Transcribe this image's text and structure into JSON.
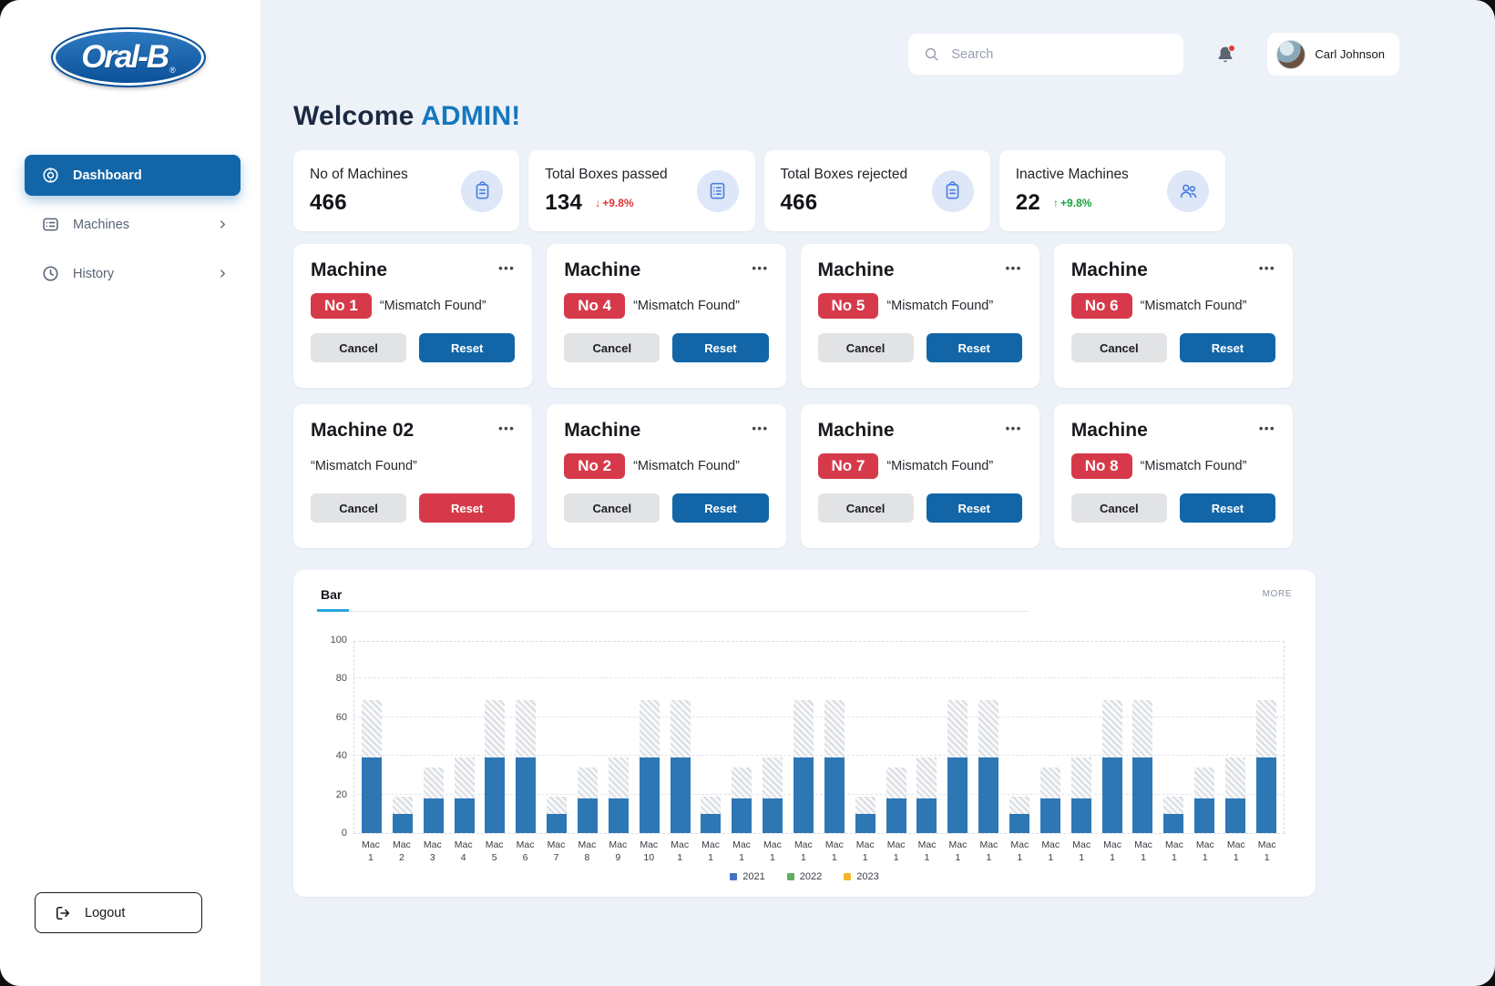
{
  "app": {
    "logo_text": "Oral-B",
    "logo_mark": "®"
  },
  "sidebar": {
    "items": [
      {
        "label": "Dashboard",
        "icon": "dashboard-icon",
        "active": true,
        "chevron": false
      },
      {
        "label": "Machines",
        "icon": "machines-icon",
        "active": false,
        "chevron": true
      },
      {
        "label": "History",
        "icon": "history-icon",
        "active": false,
        "chevron": true
      }
    ],
    "logout_label": "Logout"
  },
  "topbar": {
    "search_placeholder": "Search",
    "user_name": "Carl Johnson"
  },
  "welcome": {
    "prefix": "Welcome",
    "highlight": "ADMIN!"
  },
  "stats": [
    {
      "title": "No of Machines",
      "value": "466",
      "icon": "clipboard-icon"
    },
    {
      "title": "Total Boxes passed",
      "value": "134",
      "icon": "checklist-icon",
      "delta": "+9.8%",
      "delta_dir": "down"
    },
    {
      "title": "Total Boxes rejected",
      "value": "466",
      "icon": "clipboard-icon"
    },
    {
      "title": "Inactive Machines",
      "value": "22",
      "icon": "users-icon",
      "delta": "+9.8%",
      "delta_dir": "up"
    }
  ],
  "machine_buttons": {
    "cancel": "Cancel",
    "reset": "Reset"
  },
  "machines": [
    {
      "title": "Machine",
      "badge": "No 1",
      "status": "“Mismatch Found”",
      "reset_style": "blue"
    },
    {
      "title": "Machine",
      "badge": "No 4",
      "status": "“Mismatch Found”",
      "reset_style": "blue"
    },
    {
      "title": "Machine",
      "badge": "No 5",
      "status": "“Mismatch Found”",
      "reset_style": "blue"
    },
    {
      "title": "Machine",
      "badge": "No 6",
      "status": "“Mismatch Found”",
      "reset_style": "blue"
    },
    {
      "title": "Machine 02",
      "badge": "",
      "status": "“Mismatch Found”",
      "reset_style": "red"
    },
    {
      "title": "Machine",
      "badge": "No 2",
      "status": "“Mismatch Found”",
      "reset_style": "blue"
    },
    {
      "title": "Machine",
      "badge": "No 7",
      "status": "“Mismatch Found”",
      "reset_style": "blue"
    },
    {
      "title": "Machine",
      "badge": "No 8",
      "status": "“Mismatch Found”",
      "reset_style": "blue"
    }
  ],
  "chart_card": {
    "tab": "Bar",
    "more": "MORE"
  },
  "chart_data": {
    "type": "bar",
    "title": "Bar",
    "categories": [
      "Mac 1",
      "Mac 2",
      "Mac 3",
      "Mac 4",
      "Mac 5",
      "Mac 6",
      "Mac 7",
      "Mac 8",
      "Mac 9",
      "Mac 10",
      "Mac 1",
      "Mac 1",
      "Mac 1",
      "Mac 1",
      "Mac 1",
      "Mac 1",
      "Mac 1",
      "Mac 1",
      "Mac 1",
      "Mac 1",
      "Mac 1",
      "Mac 1",
      "Mac 1",
      "Mac 1",
      "Mac 1",
      "Mac 1",
      "Mac 1",
      "Mac 1",
      "Mac 1",
      "Mac 1"
    ],
    "series": [
      {
        "name": "solid",
        "color": "#2e77b5",
        "values": [
          39,
          10,
          18,
          18,
          39,
          39,
          10,
          18,
          18,
          39,
          39,
          10,
          18,
          18,
          39,
          39,
          10,
          18,
          18,
          39,
          39,
          10,
          18,
          18,
          39,
          39,
          10,
          18,
          18,
          39
        ]
      },
      {
        "name": "hatched-total",
        "color": "hatch",
        "values": [
          69,
          19,
          34,
          39,
          69,
          69,
          19,
          34,
          39,
          69,
          69,
          19,
          34,
          39,
          69,
          69,
          19,
          34,
          39,
          69,
          69,
          19,
          34,
          39,
          69,
          69,
          19,
          34,
          39,
          69
        ]
      }
    ],
    "ylim": [
      0,
      100
    ],
    "yticks": [
      0,
      20,
      40,
      60,
      80,
      100
    ],
    "legend": [
      {
        "label": "2021",
        "color": "#4472c4"
      },
      {
        "label": "2022",
        "color": "#5fae5f"
      },
      {
        "label": "2023",
        "color": "#f2b62c"
      }
    ],
    "legend_position": "bottom",
    "grid": "dashed"
  },
  "colors": {
    "accent_blue": "#1266a8",
    "badge_red": "#d63a4a",
    "bg": "#edf1f8",
    "positive_green": "#12a339",
    "negative_red": "#e03131"
  }
}
